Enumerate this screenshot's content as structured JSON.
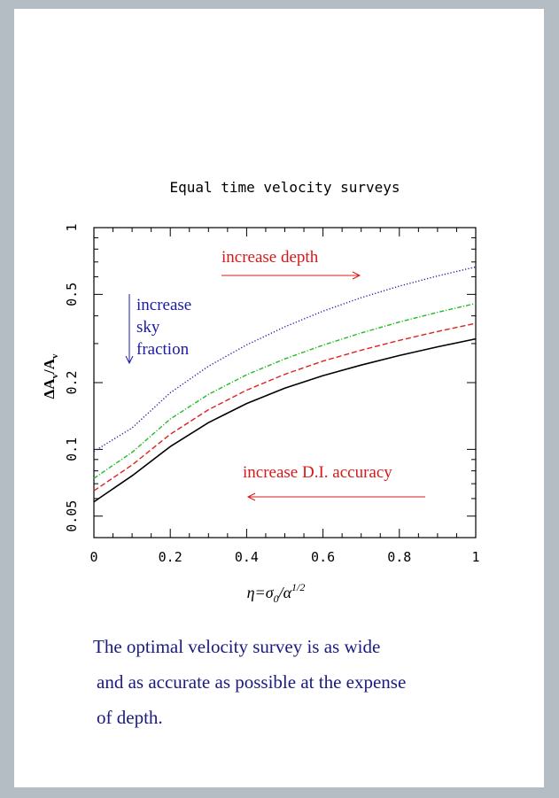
{
  "chart_data": {
    "type": "line",
    "title": "Equal time velocity surveys",
    "xlabel": "η=σ₀/α¹ᐟ²",
    "xlabel_parts": {
      "eta": "η=σ",
      "sub0": "0",
      "slash": "/α",
      "sup": "1/2"
    },
    "ylabel": "ΔAᵥ/Aᵥ",
    "ylabel_parts": {
      "main1": "ΔA",
      "sub1": "v",
      "main2": "/A",
      "sub2": "v"
    },
    "xlim": [
      0,
      1
    ],
    "ylim": [
      0.04,
      1
    ],
    "yscale": "log",
    "grid": false,
    "x_ticks": [
      0,
      0.2,
      0.4,
      0.6,
      0.8,
      1
    ],
    "x_tick_labels": [
      "0",
      "0.2",
      "0.4",
      "0.6",
      "0.8",
      "1"
    ],
    "y_ticks": [
      0.05,
      0.1,
      0.2,
      0.5,
      1
    ],
    "y_tick_labels": [
      "0.05",
      "0.1",
      "0.2",
      "0.5",
      "1"
    ],
    "x": [
      0,
      0.1,
      0.2,
      0.3,
      0.4,
      0.5,
      0.6,
      0.7,
      0.8,
      0.9,
      1.0
    ],
    "series": [
      {
        "color": "#1a1aa6",
        "style": "dotted",
        "values": [
          0.098,
          0.125,
          0.18,
          0.237,
          0.296,
          0.357,
          0.42,
          0.483,
          0.545,
          0.605,
          0.665
        ]
      },
      {
        "color": "#22bb22",
        "style": "dashdot",
        "values": [
          0.074,
          0.097,
          0.137,
          0.177,
          0.217,
          0.256,
          0.295,
          0.335,
          0.375,
          0.415,
          0.455
        ]
      },
      {
        "color": "#e02020",
        "style": "dashed",
        "values": [
          0.065,
          0.085,
          0.117,
          0.151,
          0.185,
          0.218,
          0.25,
          0.28,
          0.31,
          0.34,
          0.37
        ]
      },
      {
        "color": "#000000",
        "style": "solid",
        "values": [
          0.058,
          0.076,
          0.103,
          0.132,
          0.161,
          0.189,
          0.215,
          0.24,
          0.265,
          0.29,
          0.315
        ]
      }
    ],
    "annotations": {
      "depth": {
        "text": "increase depth",
        "color": "#d81818"
      },
      "sky": {
        "lines": [
          "increase",
          "sky",
          "fraction"
        ],
        "color": "#1a1aa6"
      },
      "accuracy": {
        "text": "increase D.I. accuracy",
        "color": "#d81818"
      }
    }
  },
  "caption": [
    "The optimal velocity survey is  as wide",
    "and as accurate as possible at the expense",
    "of depth."
  ]
}
